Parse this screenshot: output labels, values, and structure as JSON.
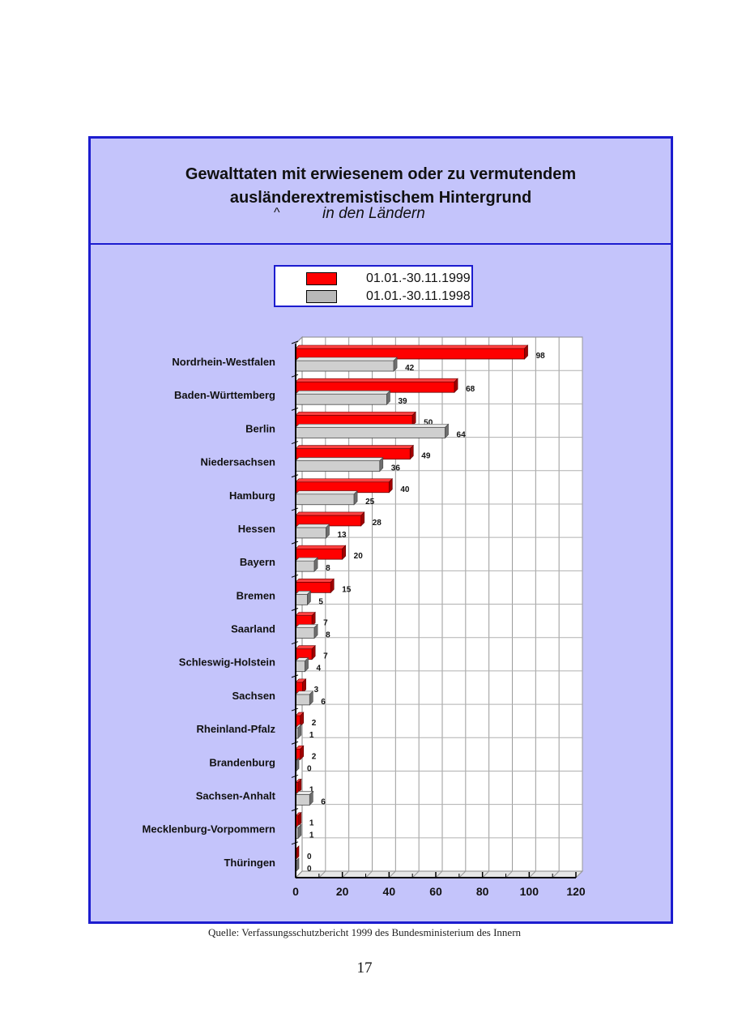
{
  "page": {
    "source_note": "Quelle: Verfassungsschutzbericht 1999 des Bundesministerium des Innern",
    "page_number": "17"
  },
  "chart_data": {
    "type": "bar",
    "orientation": "horizontal",
    "title": "Gewalttaten mit erwiesenem oder zu vermutendem\nausländerextremistischem Hintergrund",
    "title_mark": "^",
    "subtitle": "in den Ländern",
    "categories": [
      "Nordrhein-Westfalen",
      "Baden-Württemberg",
      "Berlin",
      "Niedersachsen",
      "Hamburg",
      "Hessen",
      "Bayern",
      "Bremen",
      "Saarland",
      "Schleswig-Holstein",
      "Sachsen",
      "Rheinland-Pfalz",
      "Brandenburg",
      "Sachsen-Anhalt",
      "Mecklenburg-Vorpommern",
      "Thüringen"
    ],
    "series": [
      {
        "name": "01.01.-30.11.1999",
        "color": "#ff0000",
        "values": [
          98,
          68,
          50,
          49,
          40,
          28,
          20,
          15,
          7,
          7,
          3,
          2,
          2,
          1,
          1,
          0
        ]
      },
      {
        "name": "01.01.-30.11.1998",
        "color": "#c8c8c8",
        "values": [
          42,
          39,
          64,
          36,
          25,
          13,
          8,
          5,
          8,
          4,
          6,
          1,
          0,
          6,
          1,
          0
        ]
      }
    ],
    "xlim": [
      0,
      120
    ],
    "xticks": [
      0,
      20,
      40,
      60,
      80,
      100,
      120
    ],
    "grid": true,
    "legend": "top",
    "style": "3d"
  }
}
